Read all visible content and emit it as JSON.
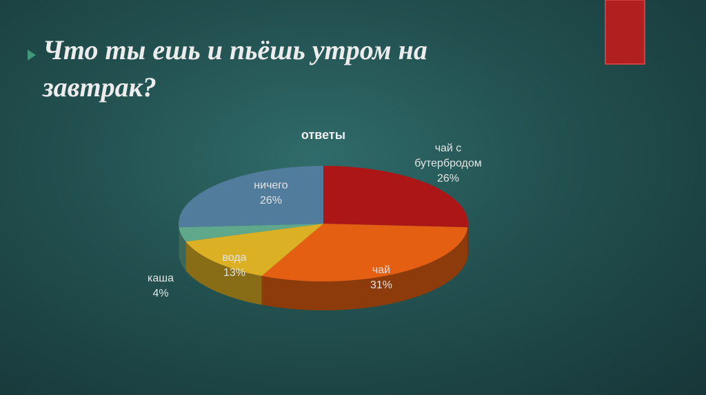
{
  "heading": "Что ты ешь и пьёшь утром на завтрак?",
  "chart_data": {
    "type": "pie3d",
    "title": "ответы",
    "categories": [
      "чай с бутербродом",
      "чай",
      "вода",
      "каша",
      "ничего"
    ],
    "values": [
      26,
      31,
      13,
      4,
      26
    ],
    "value_labels": [
      "26%",
      "31%",
      "13%",
      "4%",
      "26%"
    ],
    "colors": [
      "#ad1616",
      "#e55f12",
      "#dcb024",
      "#5fa88c",
      "#517c9c"
    ]
  }
}
